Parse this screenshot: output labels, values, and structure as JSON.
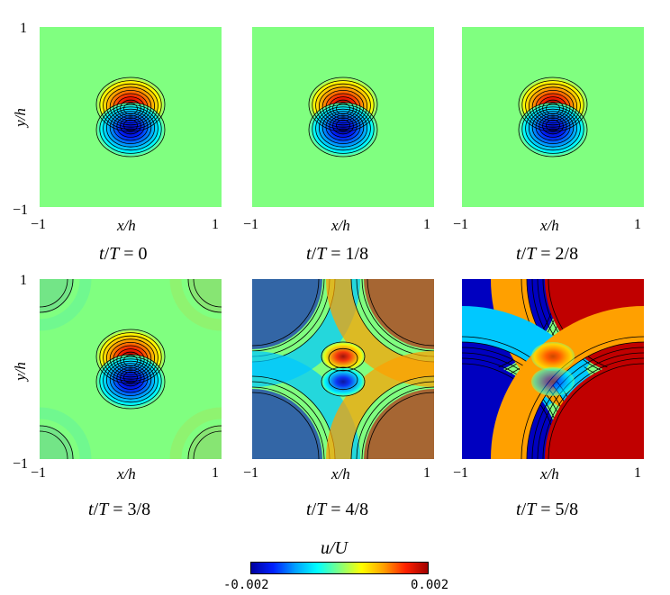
{
  "figure": {
    "panels": [
      {
        "caption_t": "t",
        "caption_T": "T",
        "caption_rest": " = 0",
        "corner_level": 0.0
      },
      {
        "caption_t": "t",
        "caption_T": "T",
        "caption_rest": " = 1/8",
        "corner_level": 0.0
      },
      {
        "caption_t": "t",
        "caption_T": "T",
        "caption_rest": " = 2/8",
        "corner_level": 0.0
      },
      {
        "caption_t": "t",
        "caption_T": "T",
        "caption_rest": " = 3/8",
        "corner_level": 0.1
      },
      {
        "caption_t": "t",
        "caption_T": "T",
        "caption_rest": " = 4/8",
        "corner_level": 0.6
      },
      {
        "caption_t": "t",
        "caption_T": "T",
        "caption_rest": " = 5/8",
        "corner_level": 1.0
      }
    ],
    "axes": {
      "x_label": "x/h",
      "y_label": "y/h",
      "x_min": "−1",
      "x_max": "1",
      "y_min": "−1",
      "y_max": "1"
    },
    "colorbar": {
      "title": "u/U",
      "min_label": "-0.002",
      "max_label": "0.002"
    },
    "colors": {
      "background_field": "#80ff80",
      "positive": "#ff2000",
      "negative": "#0020ff"
    }
  }
}
